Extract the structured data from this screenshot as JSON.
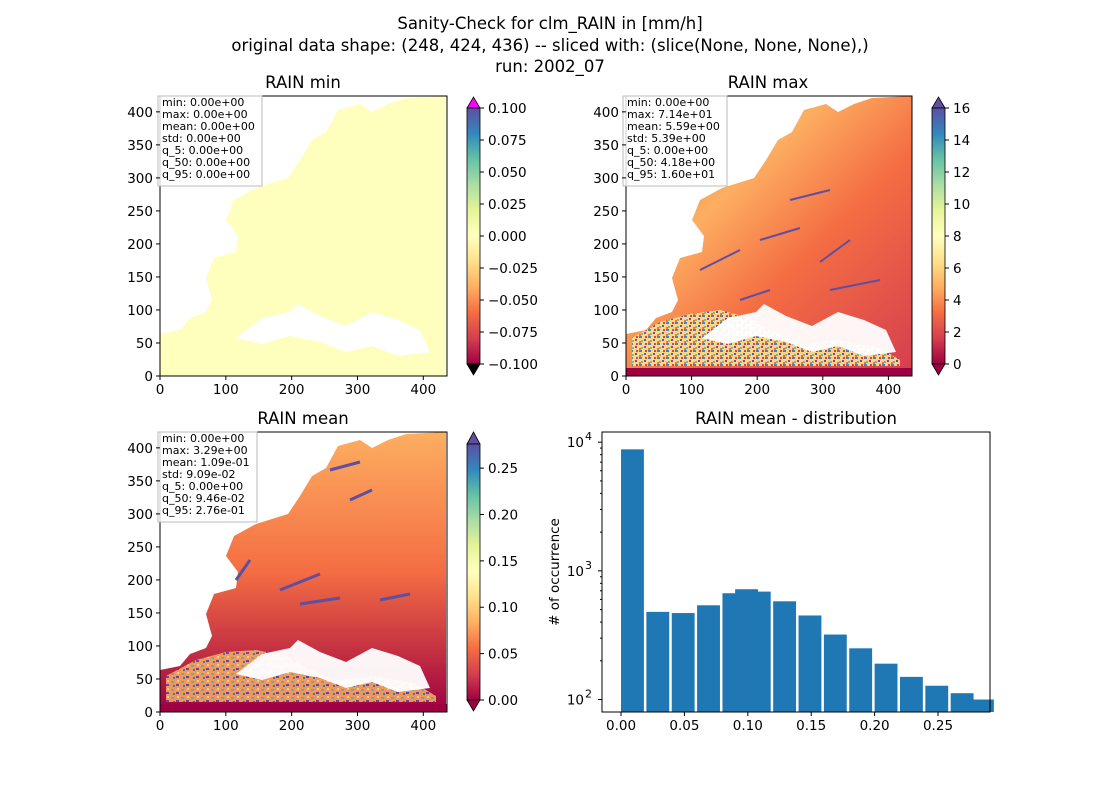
{
  "figure": {
    "title_lines": [
      "Sanity-Check for clm_RAIN in [mm/h]",
      "original data shape: (248, 424, 436) -- sliced with: (slice(None, None, None),)",
      "run: 2002_07"
    ]
  },
  "colors": {
    "map_uniform": "#fefebd",
    "bar": "#1f77b4",
    "cmap_over_min_panel": "#ff00ff",
    "cmap_under": "#000000",
    "spectral": [
      "#9e0142",
      "#d53e4f",
      "#f46d43",
      "#fdae61",
      "#fee08b",
      "#ffffbf",
      "#e6f598",
      "#abdda4",
      "#66c2a5",
      "#3288bd",
      "#5e4fa2"
    ]
  },
  "chart_data": [
    {
      "type": "heatmap",
      "title": "RAIN min",
      "xlim": [
        0,
        436
      ],
      "ylim": [
        0,
        424
      ],
      "xticks": [
        "0",
        "100",
        "200",
        "300",
        "400"
      ],
      "yticks": [
        "0",
        "50",
        "100",
        "150",
        "200",
        "250",
        "300",
        "350",
        "400"
      ],
      "colorbar": {
        "range": [
          -0.1,
          0.1
        ],
        "extend": "both",
        "ticks": [
          "0.100",
          "0.075",
          "0.050",
          "0.025",
          "0.000",
          "−0.025",
          "−0.050",
          "−0.075",
          "−0.100"
        ]
      },
      "stats": [
        "min: 0.00e+00",
        "max: 0.00e+00",
        "mean: 0.00e+00",
        "std: 0.00e+00",
        "q_5: 0.00e+00",
        "q_50: 0.00e+00",
        "q_95: 0.00e+00"
      ]
    },
    {
      "type": "heatmap",
      "title": "RAIN max",
      "xlim": [
        0,
        436
      ],
      "ylim": [
        0,
        424
      ],
      "xticks": [
        "0",
        "100",
        "200",
        "300",
        "400"
      ],
      "yticks": [
        "0",
        "50",
        "100",
        "150",
        "200",
        "250",
        "300",
        "350",
        "400"
      ],
      "colorbar": {
        "range": [
          0,
          16
        ],
        "extend": "both",
        "ticks": [
          "16",
          "14",
          "12",
          "10",
          "8",
          "6",
          "4",
          "2",
          "0"
        ]
      },
      "stats": [
        "min: 0.00e+00",
        "max: 7.14e+01",
        "mean: 5.59e+00",
        "std: 5.39e+00",
        "q_5: 0.00e+00",
        "q_50: 4.18e+00",
        "q_95: 1.60e+01"
      ]
    },
    {
      "type": "heatmap",
      "title": "RAIN mean",
      "xlim": [
        0,
        436
      ],
      "ylim": [
        0,
        424
      ],
      "xticks": [
        "0",
        "100",
        "200",
        "300",
        "400"
      ],
      "yticks": [
        "0",
        "50",
        "100",
        "150",
        "200",
        "250",
        "300",
        "350",
        "400"
      ],
      "colorbar": {
        "range": [
          0,
          0.276
        ],
        "extend": "both",
        "ticks": [
          "0.25",
          "0.20",
          "0.15",
          "0.10",
          "0.05",
          "0.00"
        ]
      },
      "stats": [
        "min: 0.00e+00",
        "max: 3.29e+00",
        "mean: 1.09e-01",
        "std: 9.09e-02",
        "q_5: 0.00e+00",
        "q_50: 9.46e-02",
        "q_95: 2.76e-01"
      ]
    },
    {
      "type": "bar",
      "title": "RAIN mean - distribution",
      "ylabel": "# of occurrence",
      "xlabel": "",
      "yscale": "log",
      "xlim": [
        -0.015,
        0.291
      ],
      "ylim": [
        80,
        12000
      ],
      "xticks": [
        "0.00",
        "0.05",
        "0.10",
        "0.15",
        "0.20",
        "0.25"
      ],
      "yticks": [
        {
          "base": "10",
          "exp": "2"
        },
        {
          "base": "10",
          "exp": "3"
        },
        {
          "base": "10",
          "exp": "4"
        }
      ],
      "x": [
        0.0,
        0.02,
        0.04,
        0.06,
        0.08,
        0.09,
        0.1,
        0.12,
        0.14,
        0.16,
        0.18,
        0.2,
        0.22,
        0.24,
        0.26,
        0.276
      ],
      "values": [
        8800,
        480,
        470,
        540,
        670,
        720,
        690,
        580,
        450,
        320,
        250,
        190,
        150,
        128,
        112,
        100
      ]
    }
  ]
}
